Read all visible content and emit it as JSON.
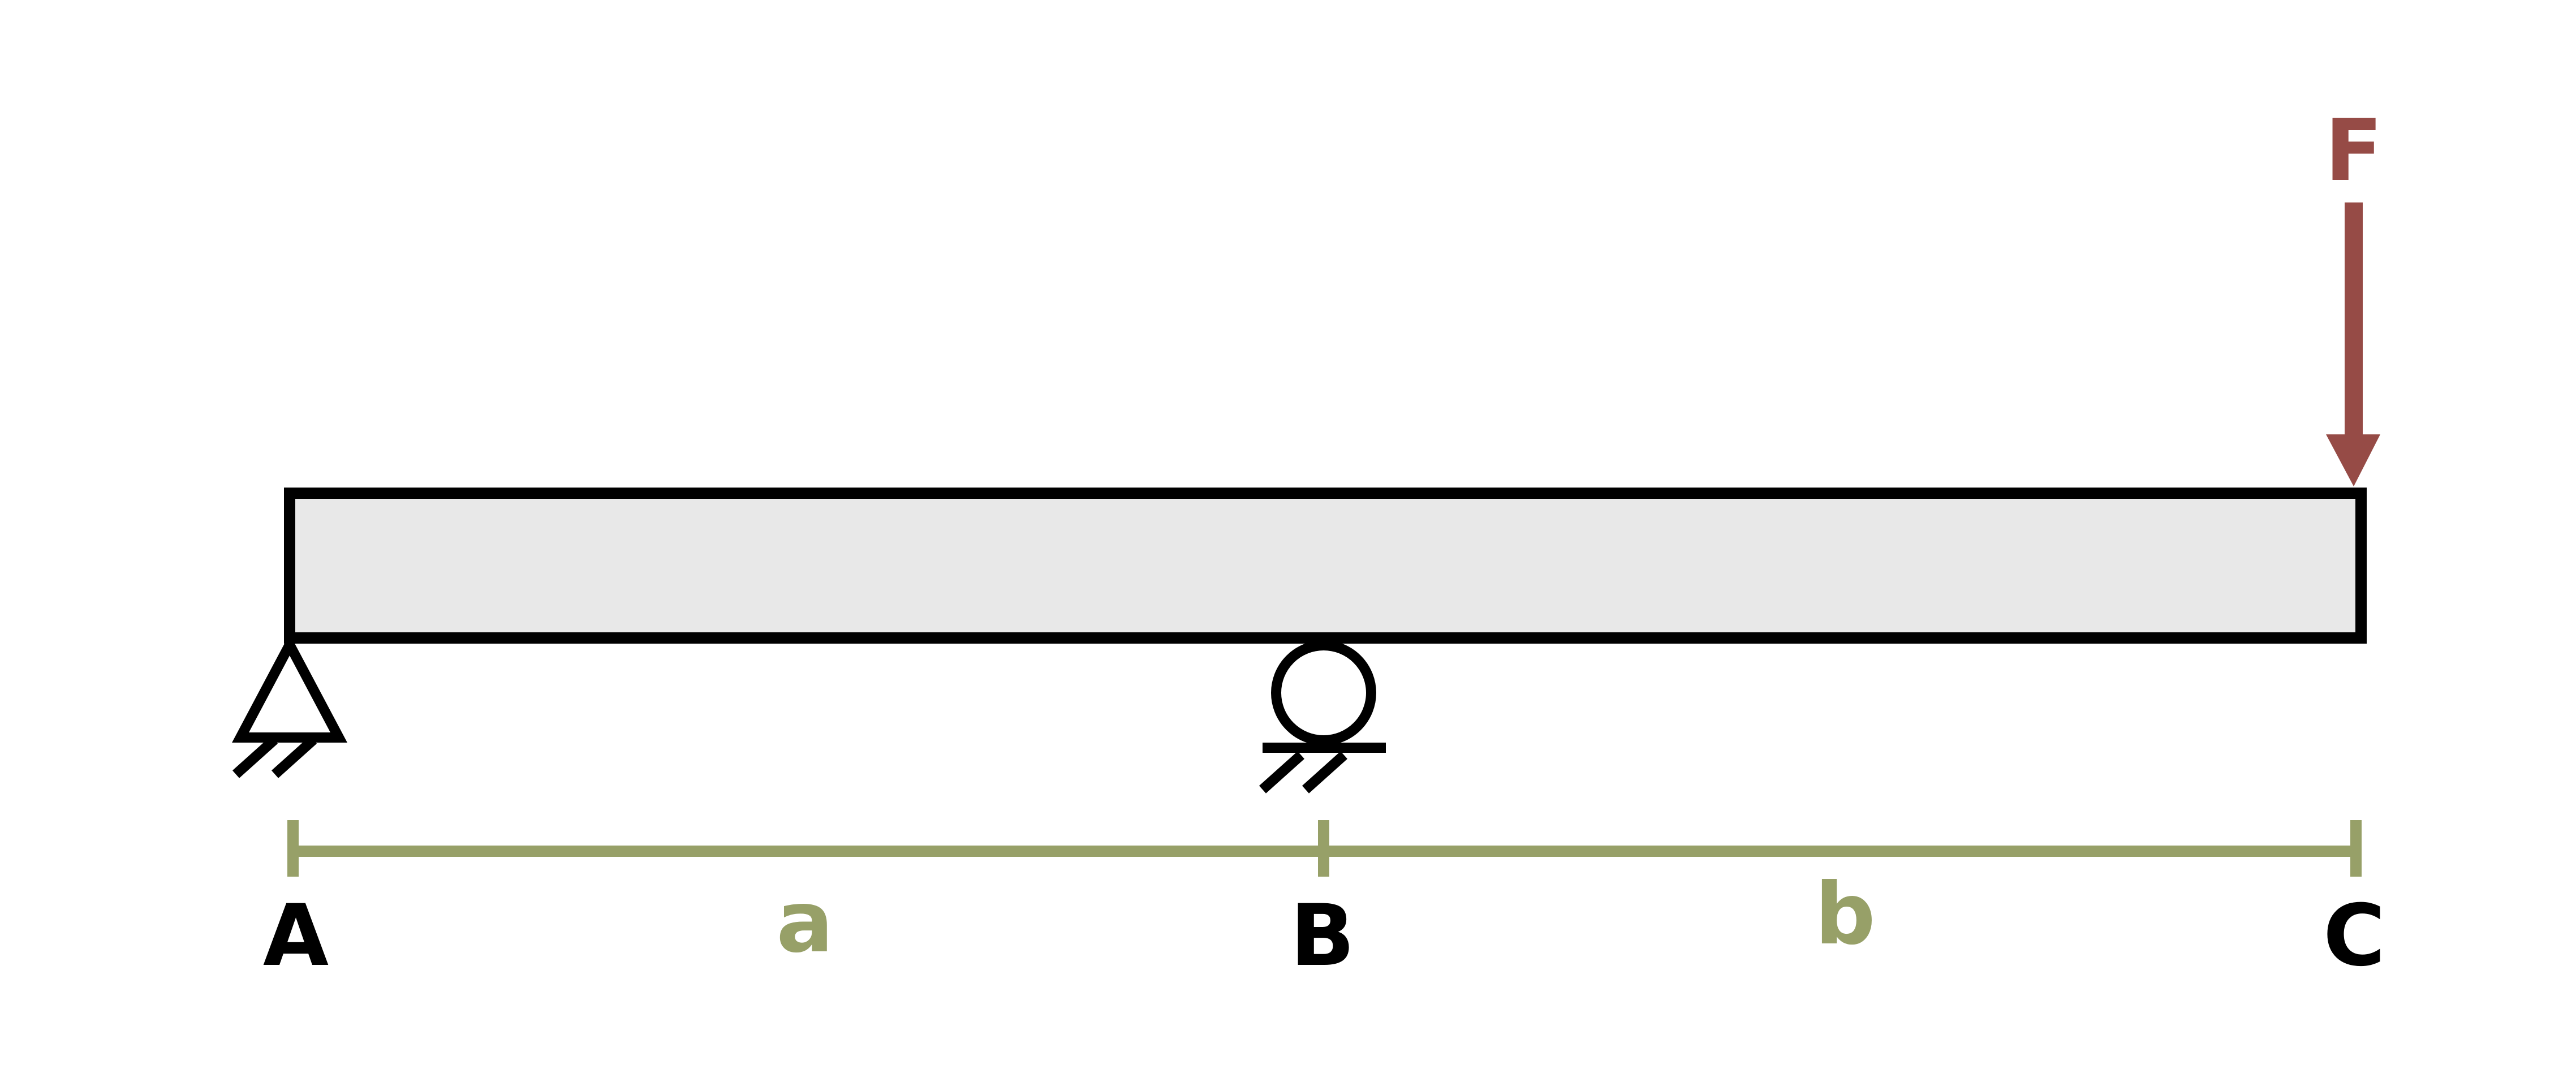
{
  "beam": {
    "fill_color": "#e8e8e8",
    "stroke_color": "#000000"
  },
  "supports": {
    "A": {
      "type": "pin",
      "icon": "pin-support-icon"
    },
    "B": {
      "type": "roller",
      "icon": "roller-support-icon"
    }
  },
  "load": {
    "label": "F",
    "color": "#964b46",
    "direction": "down",
    "location": "C"
  },
  "points": {
    "A": "A",
    "B": "B",
    "C": "C"
  },
  "dimensions": {
    "color": "#97a068",
    "a": "a",
    "b": "b"
  }
}
